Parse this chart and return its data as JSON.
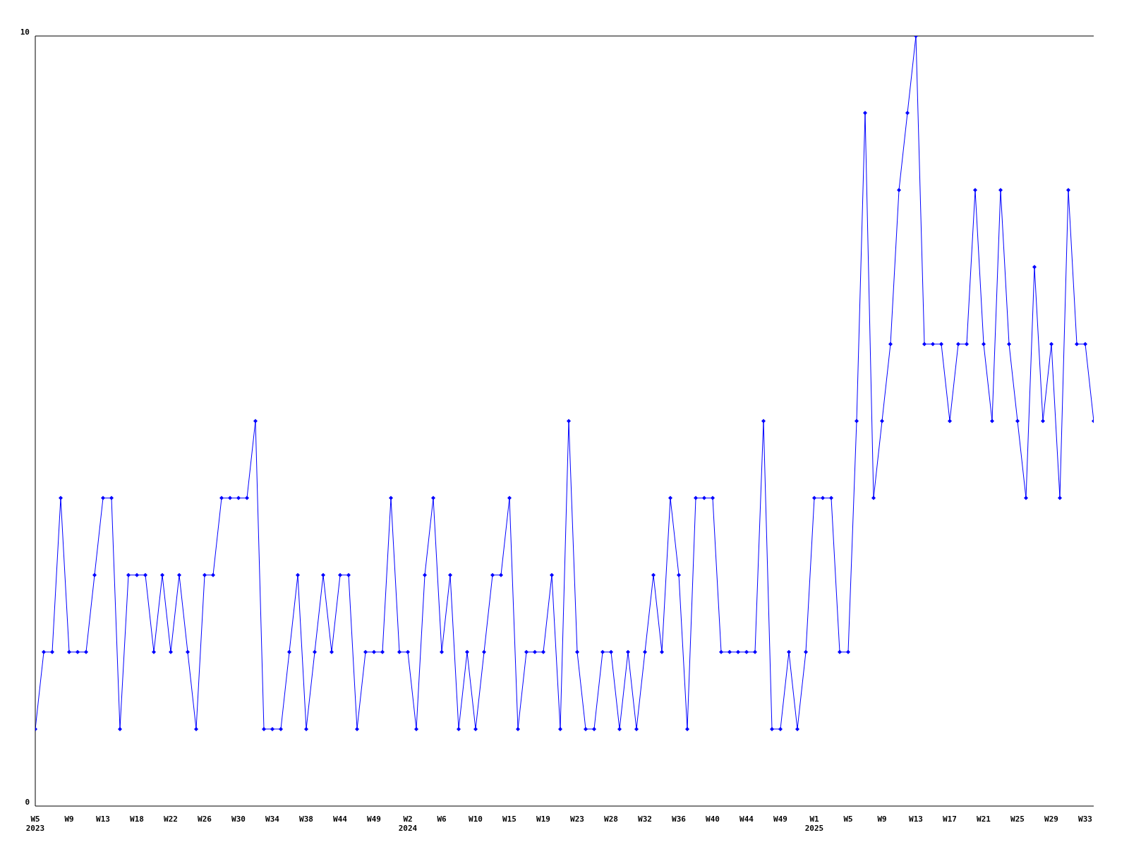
{
  "chart_data": {
    "type": "line",
    "categories": [
      "W5\n2023",
      null,
      null,
      null,
      "W9",
      null,
      null,
      null,
      "W13",
      null,
      null,
      null,
      "W18",
      null,
      null,
      null,
      "W22",
      null,
      null,
      null,
      "W26",
      null,
      null,
      null,
      "W30",
      null,
      null,
      null,
      "W34",
      null,
      null,
      null,
      "W38",
      null,
      null,
      null,
      "W44",
      null,
      null,
      null,
      "W49",
      null,
      null,
      null,
      "W2\n2024",
      null,
      null,
      null,
      "W6",
      null,
      null,
      null,
      "W10",
      null,
      null,
      null,
      "W15",
      null,
      null,
      null,
      "W19",
      null,
      null,
      null,
      "W23",
      null,
      null,
      null,
      "W28",
      null,
      null,
      null,
      "W32",
      null,
      null,
      null,
      "W36",
      null,
      null,
      null,
      "W40",
      null,
      null,
      null,
      "W44",
      null,
      null,
      null,
      "W49",
      null,
      null,
      null,
      "W1\n2025",
      null,
      null,
      null,
      "W5",
      null,
      null,
      null,
      "W9",
      null,
      null,
      null,
      "W13",
      null,
      null,
      null,
      "W17",
      null,
      null,
      null,
      "W21",
      null,
      null,
      null,
      "W25",
      null,
      null,
      null,
      "W29",
      null,
      null,
      null,
      "W33",
      null
    ],
    "series": [
      {
        "color": "#0000ff",
        "values": [
          1,
          2,
          2,
          4,
          2,
          2,
          2,
          3,
          4,
          4,
          1,
          3,
          3,
          3,
          2,
          3,
          2,
          3,
          2,
          1,
          3,
          3,
          4,
          4,
          4,
          4,
          5,
          1,
          1,
          1,
          2,
          3,
          1,
          2,
          3,
          2,
          3,
          3,
          1,
          2,
          2,
          2,
          4,
          2,
          2,
          1,
          3,
          4,
          2,
          3,
          1,
          2,
          1,
          2,
          3,
          3,
          4,
          1,
          2,
          2,
          2,
          3,
          1,
          5,
          2,
          1,
          1,
          2,
          2,
          1,
          2,
          1,
          2,
          3,
          2,
          4,
          3,
          1,
          4,
          4,
          4,
          2,
          2,
          2,
          2,
          2,
          5,
          1,
          1,
          2,
          1,
          2,
          4,
          4,
          4,
          2,
          2,
          5,
          9,
          4,
          5,
          6,
          8,
          9,
          10,
          6,
          6,
          6,
          5,
          6,
          6,
          8,
          6,
          5,
          8,
          6,
          5,
          4,
          7,
          5,
          6,
          4,
          8,
          6,
          6,
          5
        ]
      }
    ],
    "ylim": [
      0,
      10
    ],
    "yticks": [
      0,
      10
    ],
    "grid": false,
    "legend": false,
    "marker": "diamond",
    "line_style": "solid"
  }
}
